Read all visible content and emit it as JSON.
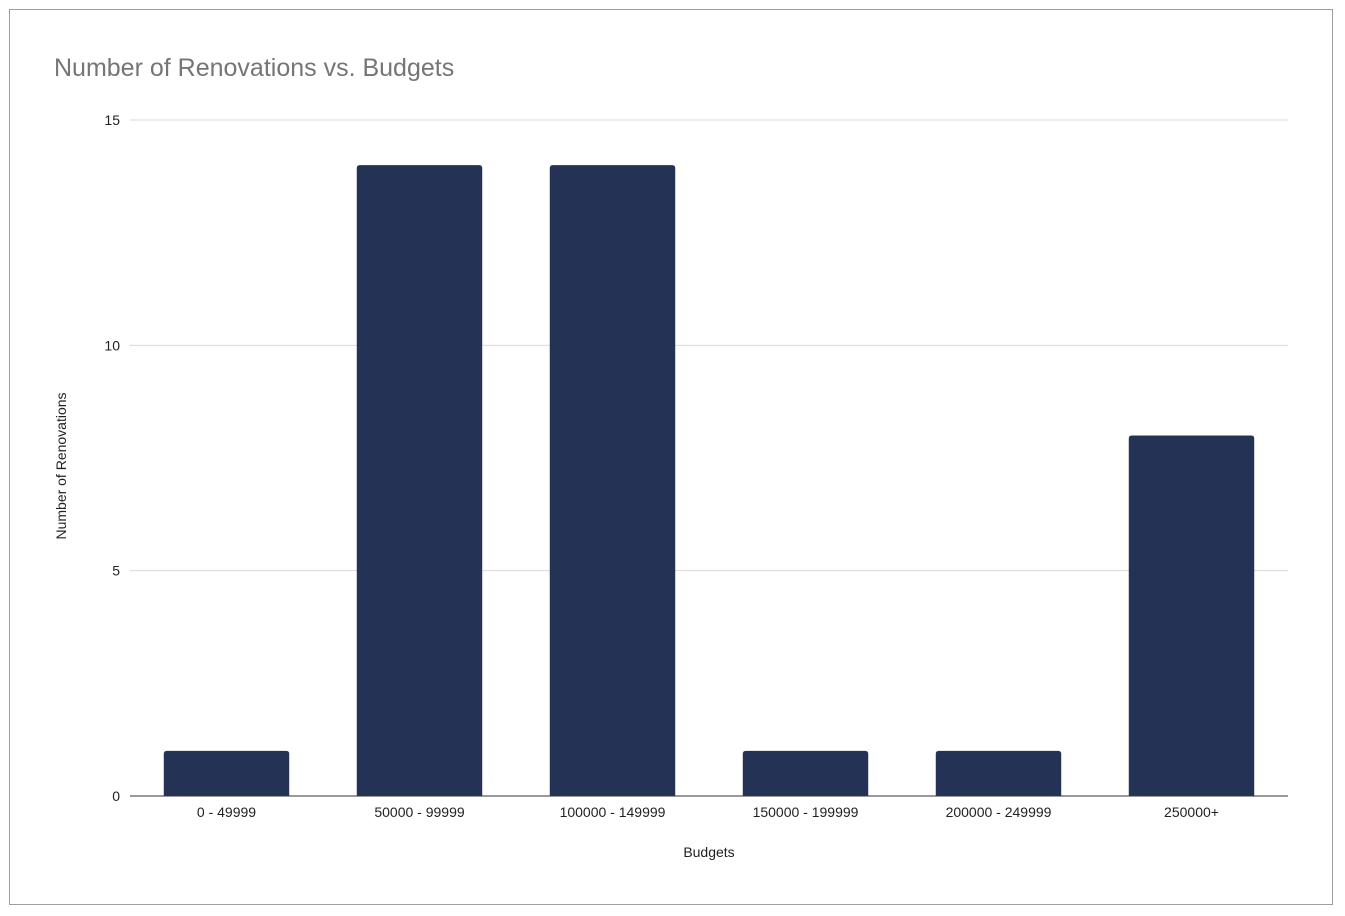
{
  "chart_data": {
    "type": "bar",
    "title": "Number of Renovations vs. Budgets",
    "xlabel": "Budgets",
    "ylabel": "Number of Renovations",
    "categories": [
      "0 - 49999",
      "50000 - 99999",
      "100000 - 149999",
      "150000 - 199999",
      "200000 - 249999",
      "250000+"
    ],
    "series": [
      {
        "name": "Number of Renovations",
        "values": [
          1,
          14,
          14,
          1,
          1,
          8
        ]
      }
    ],
    "ylim": [
      0,
      15
    ],
    "yticks": [
      "0",
      "5",
      "10",
      "15"
    ],
    "grid": true,
    "legend": "none",
    "colors": {
      "bar": "#243355"
    }
  }
}
